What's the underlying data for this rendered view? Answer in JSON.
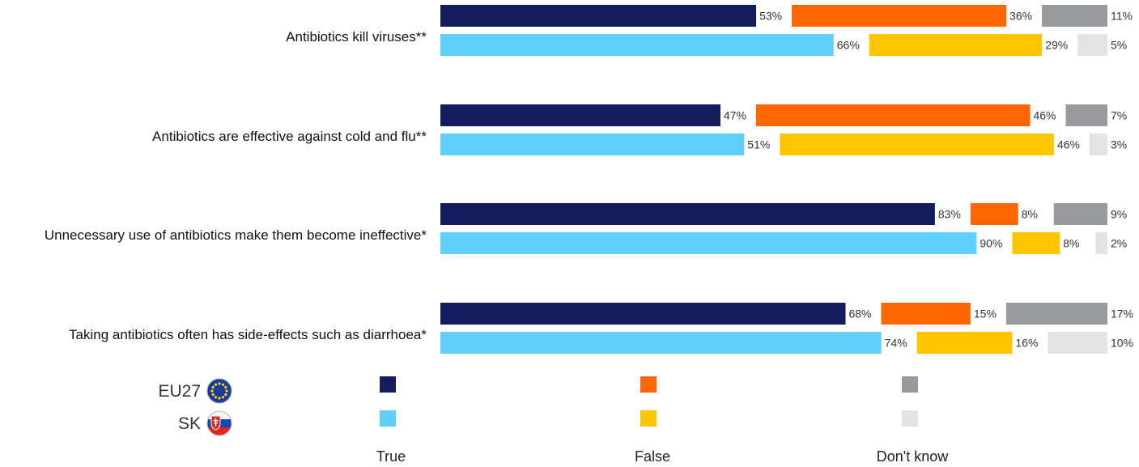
{
  "chart_data": {
    "type": "bar",
    "orientation": "horizontal",
    "stacked": true,
    "categories": [
      "Antibiotics kill viruses**",
      "Antibiotics are effective against cold and flu**",
      "Unnecessary use of antibiotics make them become ineffective*",
      "Taking antibiotics often has side-effects such as diarrhoea*"
    ],
    "groups": [
      {
        "name": "EU27",
        "icon": "eu-flag-icon"
      },
      {
        "name": "SK",
        "icon": "slovakia-flag-icon"
      }
    ],
    "answers": [
      "True",
      "False",
      "Don't know"
    ],
    "colors": {
      "EU27": [
        "#141c5e",
        "#ff6600",
        "#999a9e"
      ],
      "SK": [
        "#5fd0fb",
        "#ffc600",
        "#e3e3e3"
      ]
    },
    "series": [
      {
        "group": "EU27",
        "answer": "True",
        "values": [
          53,
          47,
          83,
          68
        ]
      },
      {
        "group": "EU27",
        "answer": "False",
        "values": [
          36,
          46,
          8,
          15
        ]
      },
      {
        "group": "EU27",
        "answer": "Don't know",
        "values": [
          11,
          7,
          9,
          17
        ]
      },
      {
        "group": "SK",
        "answer": "True",
        "values": [
          66,
          51,
          90,
          74
        ]
      },
      {
        "group": "SK",
        "answer": "False",
        "values": [
          29,
          46,
          8,
          16
        ]
      },
      {
        "group": "SK",
        "answer": "Don't know",
        "values": [
          5,
          3,
          2,
          10
        ]
      }
    ],
    "value_suffix": "%",
    "legend_position": "bottom",
    "grid": false
  }
}
